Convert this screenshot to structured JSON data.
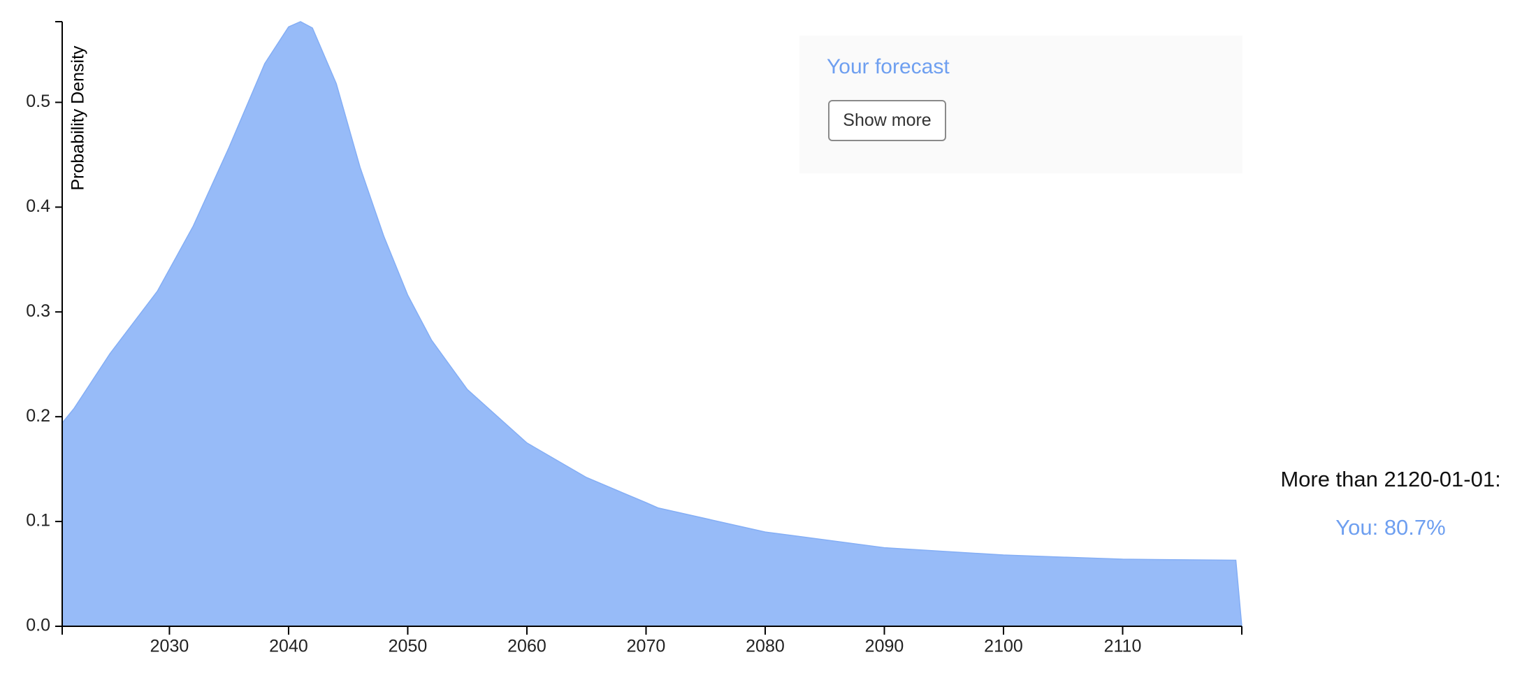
{
  "chart_data": {
    "type": "area",
    "y_label": "Probability Density",
    "x": [
      2021,
      2022,
      2025,
      2029,
      2032,
      2035,
      2038,
      2040,
      2041,
      2042,
      2044,
      2046,
      2048,
      2050,
      2052,
      2055,
      2060,
      2065,
      2070,
      2071,
      2080,
      2090,
      2100,
      2110,
      2119.5,
      2120
    ],
    "series": [
      {
        "name": "Your forecast",
        "color": "#97bbf8",
        "values": [
          0.194,
          0.208,
          0.26,
          0.32,
          0.382,
          0.457,
          0.537,
          0.572,
          0.577,
          0.571,
          0.518,
          0.438,
          0.372,
          0.316,
          0.273,
          0.226,
          0.175,
          0.142,
          0.118,
          0.113,
          0.09,
          0.075,
          0.068,
          0.064,
          0.063,
          0
        ]
      }
    ],
    "xlim": [
      2021,
      2120
    ],
    "xticks": [
      2030,
      2040,
      2050,
      2060,
      2070,
      2080,
      2090,
      2100,
      2110
    ],
    "ylim": [
      0,
      0.577
    ],
    "yticks": [
      {
        "value": 0,
        "label": "0.0"
      },
      0.1,
      0.2,
      0.3,
      0.4,
      0.5
    ],
    "grid": false
  },
  "button": "Show more",
  "outside": {
    "label": "More than 2120-01-01:",
    "you": "You: 80.7%"
  }
}
